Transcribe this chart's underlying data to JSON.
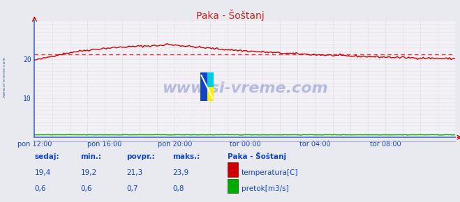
{
  "title": "Paka - Šoštanj",
  "bg_color": "#e8eaf0",
  "plot_bg_color": "#f0f2f8",
  "grid_color_h": "#ffaaaa",
  "grid_color_v": "#ddaaaa",
  "xlim": [
    0,
    288
  ],
  "ylim": [
    0,
    30
  ],
  "yticks": [
    10,
    20
  ],
  "xtick_labels": [
    "pon 12:00",
    "pon 16:00",
    "pon 20:00",
    "tor 00:00",
    "tor 04:00",
    "tor 08:00"
  ],
  "xtick_positions": [
    0,
    48,
    96,
    144,
    192,
    240
  ],
  "temp_color": "#cc0000",
  "flow_color": "#00aa00",
  "avg_line_color": "#ee3333",
  "watermark_text": "www.si-vreme.com",
  "watermark_color": "#3344aa",
  "watermark_alpha": 0.3,
  "sidebar_text": "www.si-vreme.com",
  "sidebar_color": "#2244aa",
  "text_color": "#1144cc",
  "label_sedaj": "sedaj:",
  "label_min": "min.:",
  "label_povpr": "povpr.:",
  "label_maks": "maks.:",
  "label_station": "Paka - Šoštanj",
  "label_temp": "temperatura[C]",
  "label_flow": "pretok[m3/s]",
  "val_sedaj_temp": "19,4",
  "val_min_temp": "19,2",
  "val_povpr_temp": "21,3",
  "val_maks_temp": "23,9",
  "val_sedaj_flow": "0,6",
  "val_min_flow": "0,6",
  "val_povpr_flow": "0,7",
  "val_maks_flow": "0,8",
  "avg_temp": 21.3,
  "axis_line_color": "#4466cc",
  "title_color": "#cc2222"
}
